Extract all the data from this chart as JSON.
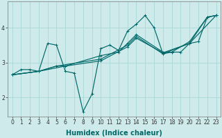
{
  "xlabel": "Humidex (Indice chaleur)",
  "ylabel": "",
  "bg_color": "#ceeaea",
  "grid_color": "#a8d8d8",
  "line_color": "#006868",
  "marker": "+",
  "lines": [
    {
      "x": [
        0,
        1,
        2,
        3,
        4,
        5,
        6,
        7,
        8,
        9,
        10,
        11,
        12,
        13,
        14,
        15,
        16,
        17,
        18,
        19,
        20,
        21,
        22,
        23
      ],
      "y": [
        2.65,
        2.8,
        2.8,
        2.75,
        3.55,
        3.5,
        2.75,
        2.7,
        1.6,
        2.1,
        3.4,
        3.5,
        3.35,
        3.9,
        4.1,
        4.35,
        4.0,
        3.25,
        3.3,
        3.3,
        3.55,
        3.6,
        4.3,
        4.35
      ]
    },
    {
      "x": [
        0,
        3,
        5,
        6,
        10,
        12,
        13,
        14,
        17,
        18,
        20,
        22,
        23
      ],
      "y": [
        2.65,
        2.75,
        2.9,
        2.9,
        3.2,
        3.3,
        3.55,
        3.8,
        3.3,
        3.3,
        3.6,
        4.3,
        4.35
      ]
    },
    {
      "x": [
        0,
        3,
        5,
        10,
        13,
        14,
        17,
        20,
        22,
        23
      ],
      "y": [
        2.65,
        2.75,
        2.9,
        3.1,
        3.5,
        3.75,
        3.25,
        3.55,
        4.3,
        4.35
      ]
    },
    {
      "x": [
        0,
        3,
        6,
        10,
        13,
        14,
        17,
        20,
        23
      ],
      "y": [
        2.65,
        2.75,
        2.9,
        3.05,
        3.45,
        3.7,
        3.28,
        3.55,
        4.35
      ]
    }
  ],
  "xlim": [
    -0.5,
    23.5
  ],
  "ylim": [
    1.45,
    4.75
  ],
  "xticks": [
    0,
    1,
    2,
    3,
    4,
    5,
    6,
    7,
    8,
    9,
    10,
    11,
    12,
    13,
    14,
    15,
    16,
    17,
    18,
    19,
    20,
    21,
    22,
    23
  ],
  "yticks": [
    2,
    3,
    4
  ],
  "tick_fontsize": 5.5,
  "xlabel_fontsize": 7.0,
  "linewidth": 0.85,
  "markersize": 3.0
}
